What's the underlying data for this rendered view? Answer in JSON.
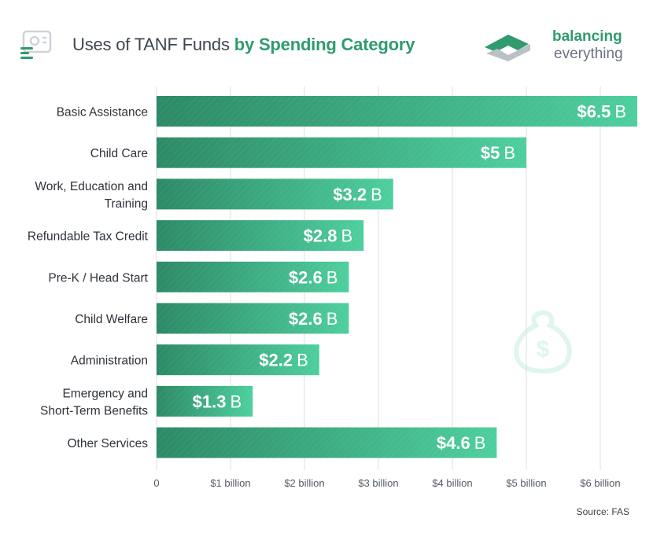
{
  "header": {
    "title_light": "Uses of TANF Funds",
    "title_bold": "by Spending Category",
    "icon": "document-chart-icon"
  },
  "brand": {
    "name_line1": "balancing",
    "name_line2": "everything",
    "icon": "balancing-everything-logo"
  },
  "source": "Source: FAS",
  "colors": {
    "bar_dark": "#2d8a67",
    "bar_light": "#4ecf9e",
    "title_accent": "#2f9b6e",
    "grid": "#dcdfe3"
  },
  "chart_data": {
    "type": "bar",
    "orientation": "horizontal",
    "categories": [
      "Basic Assistance",
      "Child Care",
      "Work, Education and Training",
      "Refundable Tax Credit",
      "Pre-K / Head Start",
      "Child Welfare",
      "Administration",
      "Emergency and Short-Term Benefits",
      "Other Services"
    ],
    "category_lines": [
      [
        "Basic Assistance"
      ],
      [
        "Child Care"
      ],
      [
        "Work, Education and",
        "Training"
      ],
      [
        "Refundable Tax Credit"
      ],
      [
        "Pre-K / Head Start"
      ],
      [
        "Child Welfare"
      ],
      [
        "Administration"
      ],
      [
        "Emergency and",
        "Short-Term Benefits"
      ],
      [
        "Other Services"
      ]
    ],
    "values": [
      6.5,
      5,
      3.2,
      2.8,
      2.6,
      2.6,
      2.2,
      1.3,
      4.6
    ],
    "value_labels": [
      "$6.5",
      "$5",
      "$3.2",
      "$2.8",
      "$2.6",
      "$2.6",
      "$2.2",
      "$1.3",
      "$4.6"
    ],
    "value_unit": "B",
    "xlim": [
      0,
      6.5
    ],
    "xticks": [
      0,
      1,
      2,
      3,
      4,
      5,
      6
    ],
    "xtick_labels": [
      "0",
      "$1 billion",
      "$2 billion",
      "$3 billion",
      "$4 billion",
      "$5 billion",
      "$6 billion"
    ],
    "grid": true,
    "title": "Uses of TANF Funds by Spending Category",
    "xlabel": "",
    "ylabel": ""
  }
}
